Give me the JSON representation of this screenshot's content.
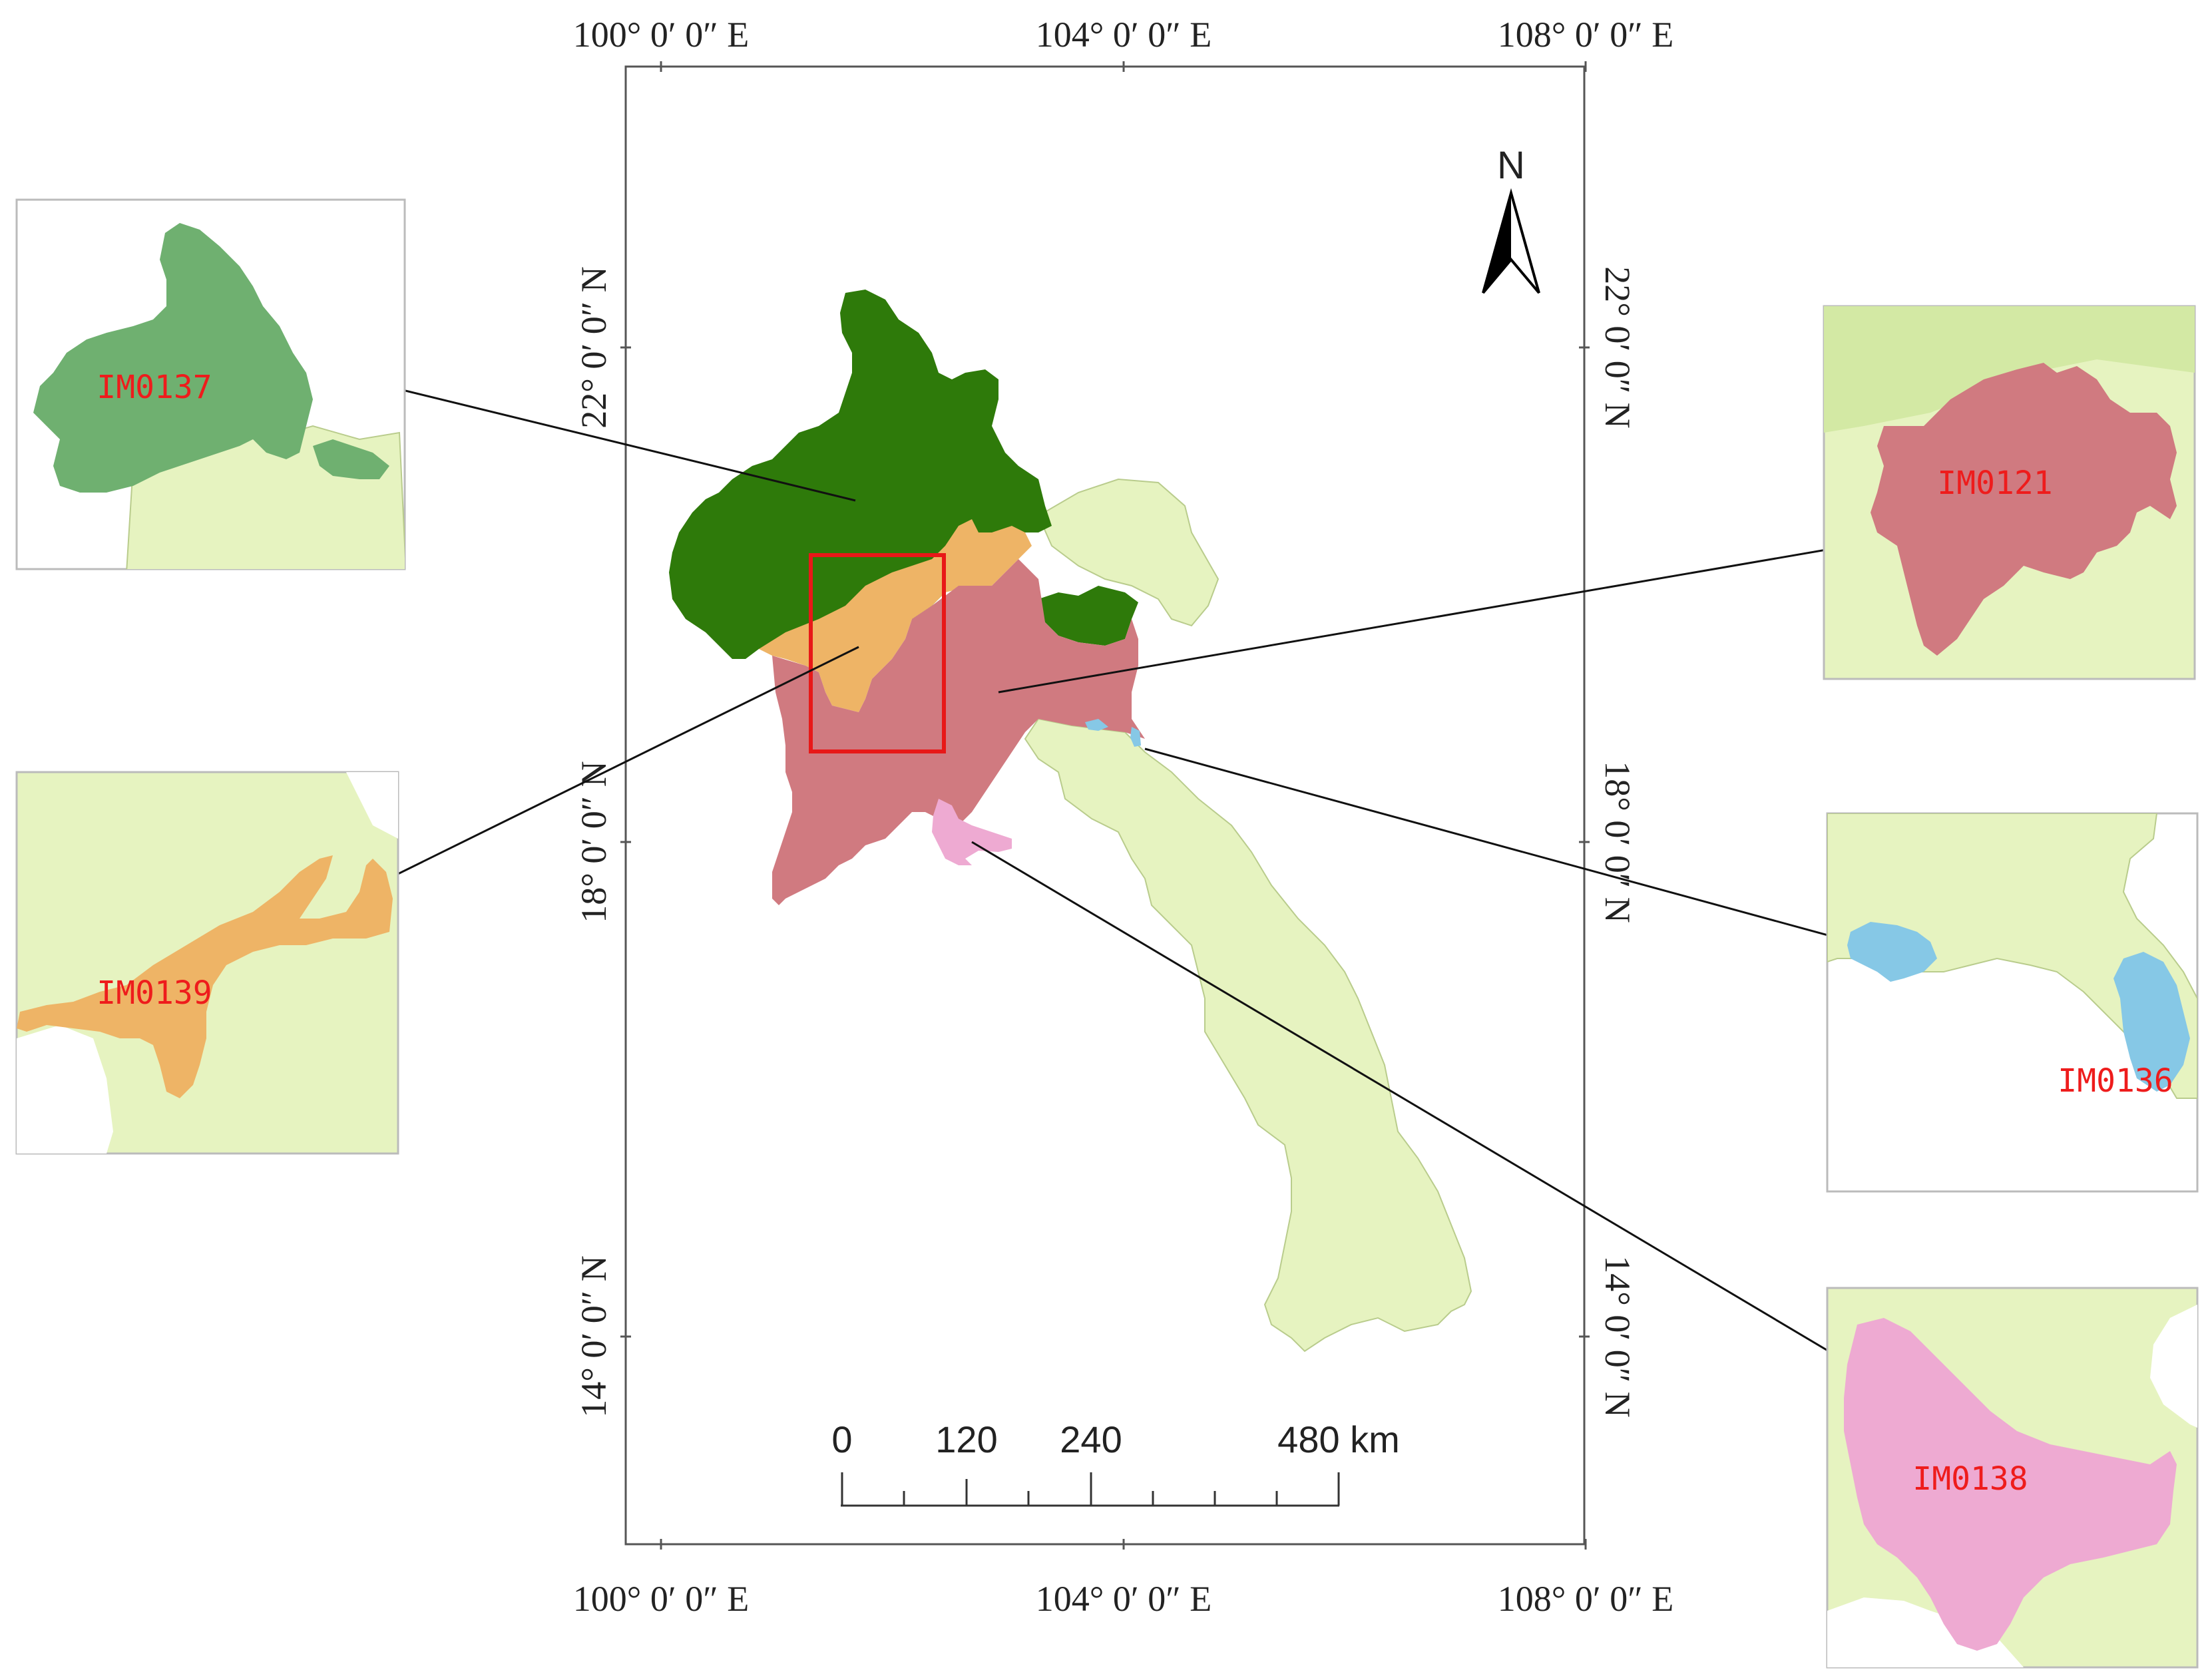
{
  "colors": {
    "background": "#ffffff",
    "frame": "#555555",
    "base_region": "#e6f3c0",
    "base_edge": "#b9cc8c",
    "im0137_main": "#2e7a0a",
    "im0137_inset": "#6fb070",
    "im0139": "#eeb466",
    "im0121": "#d07a80",
    "im0136": "#86c8e6",
    "im0138": "#eeaad2",
    "highlight_box": "#e81818",
    "label_red": "#ee1c1c",
    "leader": "#111111"
  },
  "axes": {
    "top_longitude": [
      "100° 0′ 0″ E",
      "104° 0′ 0″ E",
      "108° 0′ 0″ E"
    ],
    "bottom_longitude": [
      "100° 0′ 0″ E",
      "104° 0′ 0″ E",
      "108° 0′ 0″ E"
    ],
    "left_latitude": [
      "22° 0′ 0″ N",
      "18° 0′ 0″ N",
      "14° 0′ 0″ N"
    ],
    "right_latitude": [
      "22° 0′ 0″ N",
      "18° 0′ 0″ N",
      "14° 0′ 0″ N"
    ]
  },
  "north_arrow": {
    "letter": "N",
    "icon": "north-arrow-icon"
  },
  "scale_bar": {
    "labels": [
      "0",
      "120",
      "240",
      "480 km"
    ]
  },
  "insets": {
    "im0137": {
      "label": "IM0137"
    },
    "im0139": {
      "label": "IM0139"
    },
    "im0121": {
      "label": "IM0121"
    },
    "im0136": {
      "label": "IM0136"
    },
    "im0138": {
      "label": "IM0138"
    }
  }
}
